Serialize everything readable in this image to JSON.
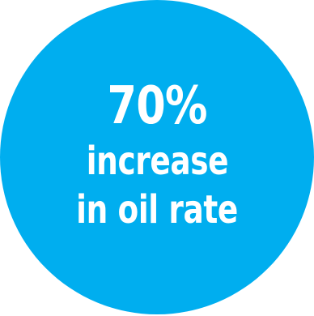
{
  "badge": {
    "headline": "70%",
    "line1": "increase",
    "line2": "in oil rate",
    "color": "#00AEEF",
    "text_color": "#FFFFFF"
  }
}
